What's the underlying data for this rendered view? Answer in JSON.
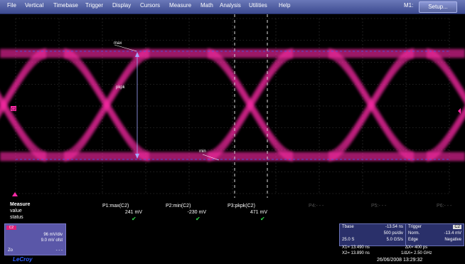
{
  "menu": {
    "items": [
      "File",
      "Vertical",
      "Timebase",
      "Trigger",
      "Display",
      "Cursors",
      "Measure",
      "Math",
      "Analysis",
      "Utilities",
      "Help"
    ],
    "channel": "M1:",
    "setup_label": "Setup..."
  },
  "markers": {
    "max": "max",
    "pkpk": "pkpk",
    "min": "min",
    "channel_marker": "C2"
  },
  "measure": {
    "title": "Measure",
    "row_value": "value",
    "row_status": "status",
    "params": [
      {
        "label": "P1:max(C2)",
        "value": "241 mV",
        "ok": true
      },
      {
        "label": "P2:min(C2)",
        "value": "-230 mV",
        "ok": true
      },
      {
        "label": "P3:pkpk(C2)",
        "value": "471 mV",
        "ok": true
      },
      {
        "label": "P4:- - -",
        "value": "",
        "ok": false
      },
      {
        "label": "P5:- - -",
        "value": "",
        "ok": false
      },
      {
        "label": "P6:- - -",
        "value": "",
        "ok": false
      }
    ]
  },
  "channel_box": {
    "tag": "C2",
    "vdiv": "96 mV/div",
    "offset": "9.0 mV ofst",
    "zoom": "Zo",
    "zoom_dash": "- - -"
  },
  "timebase": {
    "label": "Tbase",
    "delay": "-13.54 ns",
    "tdiv": "500 ps/div",
    "pts": "25.0 S",
    "rate": "5.0 GS/s"
  },
  "trigger": {
    "label": "Trigger",
    "mode": "Norm.",
    "level": "-13.4 mV",
    "type": "Edge",
    "slope": "Negative",
    "channel": "C2"
  },
  "cursors": {
    "x1": "X1= 13.490 ns",
    "dx": "ΔX= 400 ps",
    "x2": "X2= 13.890 ns",
    "inv": "1/ΔX= 2.50 GHz"
  },
  "brand": "LeCroy",
  "timestamp": "26/06/2008 13:29:32",
  "colors": {
    "trace": "#ff2aa8",
    "menu": "#4a58a0",
    "check": "#2ee04a",
    "cursor_h": "#4060ff"
  }
}
